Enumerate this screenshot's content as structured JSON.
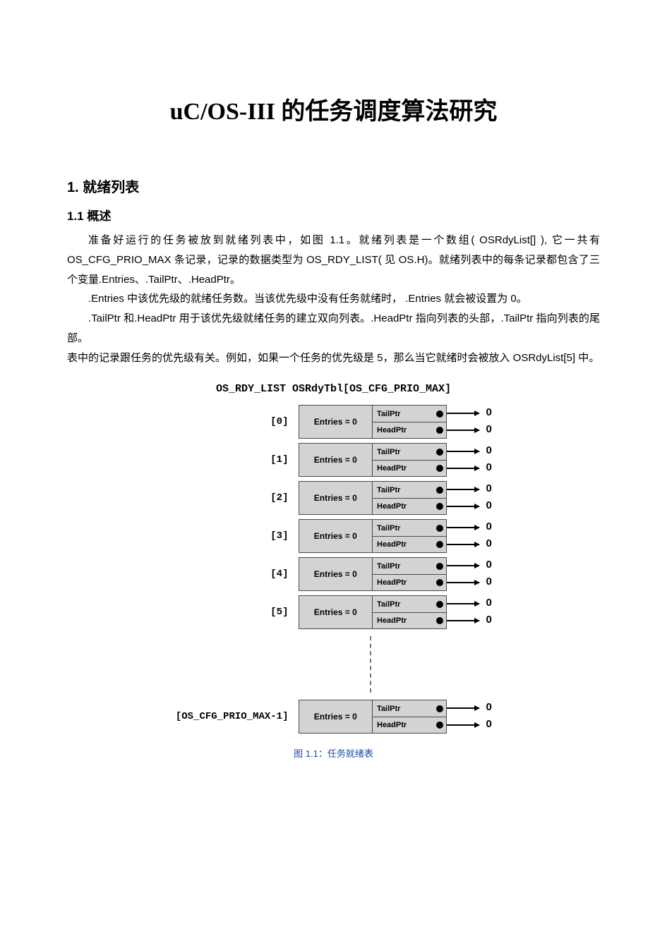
{
  "title": "uC/OS-III 的任务调度算法研究",
  "section1": {
    "num_title": "1. 就绪列表",
    "sub1_title": "1.1 概述",
    "p1": "准备好运行的任务被放到就绪列表中，如图 1.1。就绪列表是一个数组( OSRdyList[] ), 它一共有 OS_CFG_PRIO_MAX 条记录，记录的数据类型为 OS_RDY_LIST( 见 OS.H)。就绪列表中的每条记录都包含了三个变量.Entries、.TailPtr、.HeadPtr。",
    "p2": ".Entries 中该优先级的就绪任务数。当该优先级中没有任务就绪时， .Entries 就会被设置为 0。",
    "p3": ".TailPtr 和.HeadPtr 用于该优先级就绪任务的建立双向列表。.HeadPtr 指向列表的头部，.TailPtr 指向列表的尾部。",
    "p4": "表中的记录跟任务的优先级有关。例如，如果一个任务的优先级是 5，那么当它就绪时会被放入 OSRdyList[5] 中。"
  },
  "diagram": {
    "header": "OS_RDY_LIST OSRdyTbl[OS_CFG_PRIO_MAX]",
    "entries_label": "Entries = 0",
    "tail_label": "TailPtr",
    "head_label": "HeadPtr",
    "zero": "0",
    "indices": [
      "[0]",
      "[1]",
      "[2]",
      "[3]",
      "[4]",
      "[5]"
    ],
    "last_index": "[OS_CFG_PRIO_MAX-1]",
    "caption": "图 1.1：任务就绪表",
    "colors": {
      "cell_bg": "#d3d3d3",
      "cell_border": "#4a4a4a",
      "caption_color": "#1a4aa8"
    }
  }
}
